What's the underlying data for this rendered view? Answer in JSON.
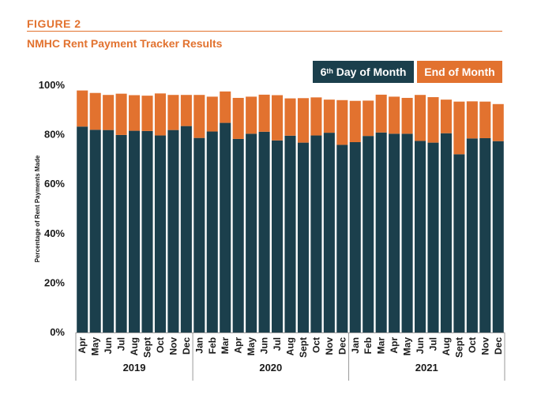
{
  "figure_label": "FIGURE 2",
  "figure_title": "NMHC Rent Payment Tracker Results",
  "colors": {
    "accent": "#e2722f",
    "dark": "#1b3f4c",
    "grid": "#9a9a9a"
  },
  "legend": {
    "day6": {
      "prefix": "6",
      "sup": "th",
      "rest": " Day of Month"
    },
    "end": {
      "label": "End of Month"
    }
  },
  "chart_data": {
    "type": "bar",
    "stacked": true,
    "title": "NMHC Rent Payment Tracker Results",
    "ylabel": "Percentage of Rent Payments Made",
    "xlabel": "",
    "ylim": [
      0,
      100
    ],
    "yticks": [
      0,
      20,
      40,
      60,
      80,
      100
    ],
    "ytick_labels": [
      "0%",
      "20%",
      "40%",
      "60%",
      "80%",
      "100%"
    ],
    "categories": [
      "Apr",
      "May",
      "Jun",
      "Jul",
      "Aug",
      "Sept",
      "Oct",
      "Nov",
      "Dec",
      "Jan",
      "Feb",
      "Mar",
      "Apr",
      "May",
      "Jun",
      "Jul",
      "Aug",
      "Sept",
      "Oct",
      "Nov",
      "Dec",
      "Jan",
      "Feb",
      "Mar",
      "Apr",
      "May",
      "Jun",
      "Jul",
      "Aug",
      "Sept",
      "Oct",
      "Nov",
      "Dec"
    ],
    "groups": [
      {
        "label": "2019",
        "start": 0,
        "end": 8
      },
      {
        "label": "2020",
        "start": 9,
        "end": 20
      },
      {
        "label": "2021",
        "start": 21,
        "end": 32
      }
    ],
    "series": [
      {
        "name": "6th Day of Month",
        "values": [
          83.3,
          82.0,
          81.9,
          79.9,
          81.6,
          81.5,
          79.7,
          81.9,
          83.5,
          78.7,
          81.3,
          84.8,
          78.3,
          80.4,
          81.2,
          77.7,
          79.6,
          76.8,
          79.7,
          80.8,
          75.9,
          77.0,
          79.5,
          80.9,
          80.4,
          80.4,
          77.5,
          76.8,
          80.6,
          72.1,
          78.5,
          78.6,
          77.4
        ]
      },
      {
        "name": "End of Month",
        "values": [
          14.6,
          14.9,
          14.2,
          16.7,
          14.4,
          14.3,
          17.0,
          14.2,
          12.6,
          17.4,
          14.1,
          12.7,
          16.6,
          15.0,
          15.0,
          18.3,
          15.1,
          18.0,
          15.4,
          13.4,
          18.1,
          16.7,
          14.3,
          15.3,
          15.0,
          14.5,
          18.6,
          18.4,
          13.6,
          21.3,
          15.0,
          14.8,
          15.0
        ]
      }
    ],
    "totals": [
      97.9,
      96.9,
      96.1,
      96.6,
      96.0,
      95.8,
      96.7,
      96.1,
      96.1,
      96.1,
      95.4,
      97.5,
      94.9,
      95.4,
      96.2,
      96.0,
      94.7,
      94.8,
      95.1,
      94.2,
      94.0,
      93.7,
      93.8,
      96.2,
      95.4,
      94.9,
      96.1,
      95.2,
      94.2,
      93.4,
      93.5,
      93.4,
      92.4
    ]
  }
}
